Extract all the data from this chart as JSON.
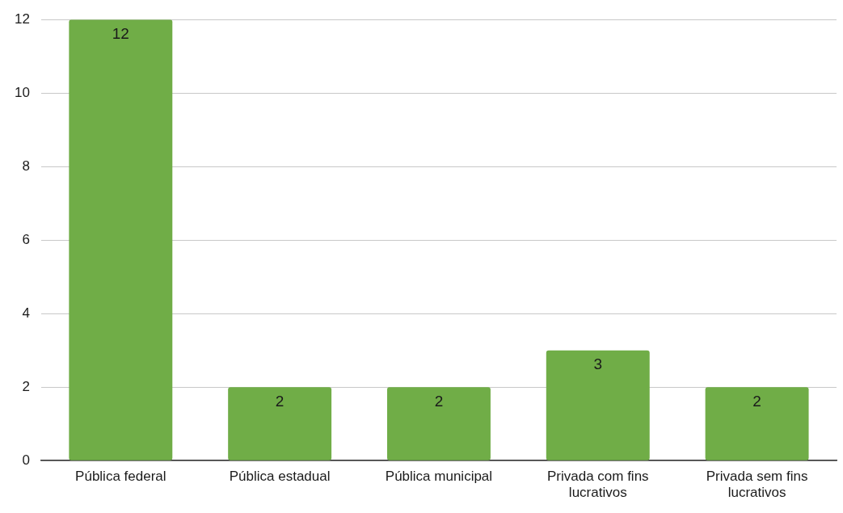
{
  "chart_data": {
    "type": "bar",
    "categories": [
      "Pública federal",
      "Pública estadual",
      "Pública municipal",
      "Privada com fins lucrativos",
      "Privada sem fins lucrativos"
    ],
    "values": [
      12,
      2,
      2,
      3,
      2
    ],
    "color": "#70ad47",
    "ylim": [
      0,
      12
    ],
    "yticks": [
      0,
      2,
      4,
      6,
      8,
      10,
      12
    ],
    "grid": "y",
    "data_labels": true,
    "legend": false
  }
}
